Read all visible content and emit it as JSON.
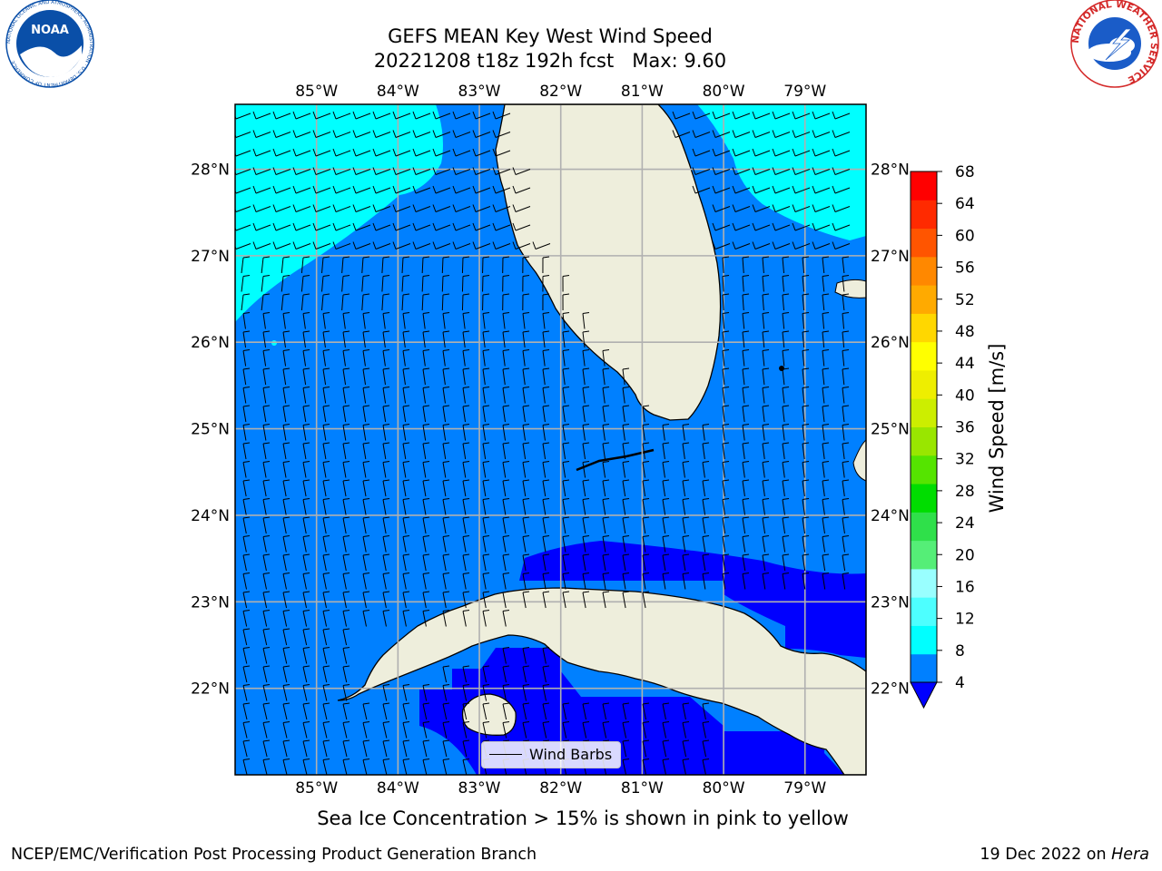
{
  "header": {
    "title_line1": "GEFS MEAN Key West Wind Speed",
    "title_line2": "20221208 t18z 192h fcst   Max: 9.60"
  },
  "logos": {
    "left": {
      "name": "noaa-logo",
      "text": "NOAA",
      "ring_text": "NATIONAL OCEANIC AND ATMOSPHERIC ADMINISTRATION · U.S. DEPARTMENT OF COMMERCE",
      "color": "#0a4fa8"
    },
    "right": {
      "name": "nws-logo",
      "ring_text": "NATIONAL WEATHER SERVICE",
      "color": "#d42a2a"
    }
  },
  "map": {
    "longitude_labels": [
      "85°W",
      "84°W",
      "83°W",
      "82°W",
      "81°W",
      "80°W",
      "79°W"
    ],
    "latitude_labels": [
      "28°N",
      "27°N",
      "26°N",
      "25°N",
      "24°N",
      "23°N",
      "22°N"
    ],
    "lon_range": [
      -86.0,
      -78.25
    ],
    "lat_range": [
      21.0,
      28.75
    ],
    "legend_label": "Wind Barbs",
    "colors": {
      "band_4_8": "#0080ff",
      "band_8_12": "#00ffff",
      "band_below_4": "#0000ff",
      "land": "#eeeedc",
      "coast": "#000000",
      "grid": "#b0b0b0"
    }
  },
  "colorbar": {
    "label": "Wind Speed [m/s]",
    "ticks": [
      "4",
      "8",
      "12",
      "16",
      "20",
      "24",
      "28",
      "32",
      "36",
      "40",
      "44",
      "48",
      "52",
      "56",
      "60",
      "64",
      "68"
    ],
    "colors": [
      "#0080ff",
      "#00ffff",
      "#4dffff",
      "#99ffff",
      "#55ee77",
      "#2fe04a",
      "#00dd00",
      "#55e400",
      "#99e600",
      "#ccee00",
      "#eeee00",
      "#ffff00",
      "#ffd700",
      "#ffaa00",
      "#ff8800",
      "#ff5500",
      "#ff2a00",
      "#ff0000"
    ],
    "under_color": "#0000ff"
  },
  "note": "Sea Ice Concentration > 15% is shown in pink to yellow",
  "footer": {
    "left": "NCEP/EMC/Verification Post Processing Product Generation Branch",
    "date": "19 Dec 2022 on ",
    "machine": "Hera"
  }
}
